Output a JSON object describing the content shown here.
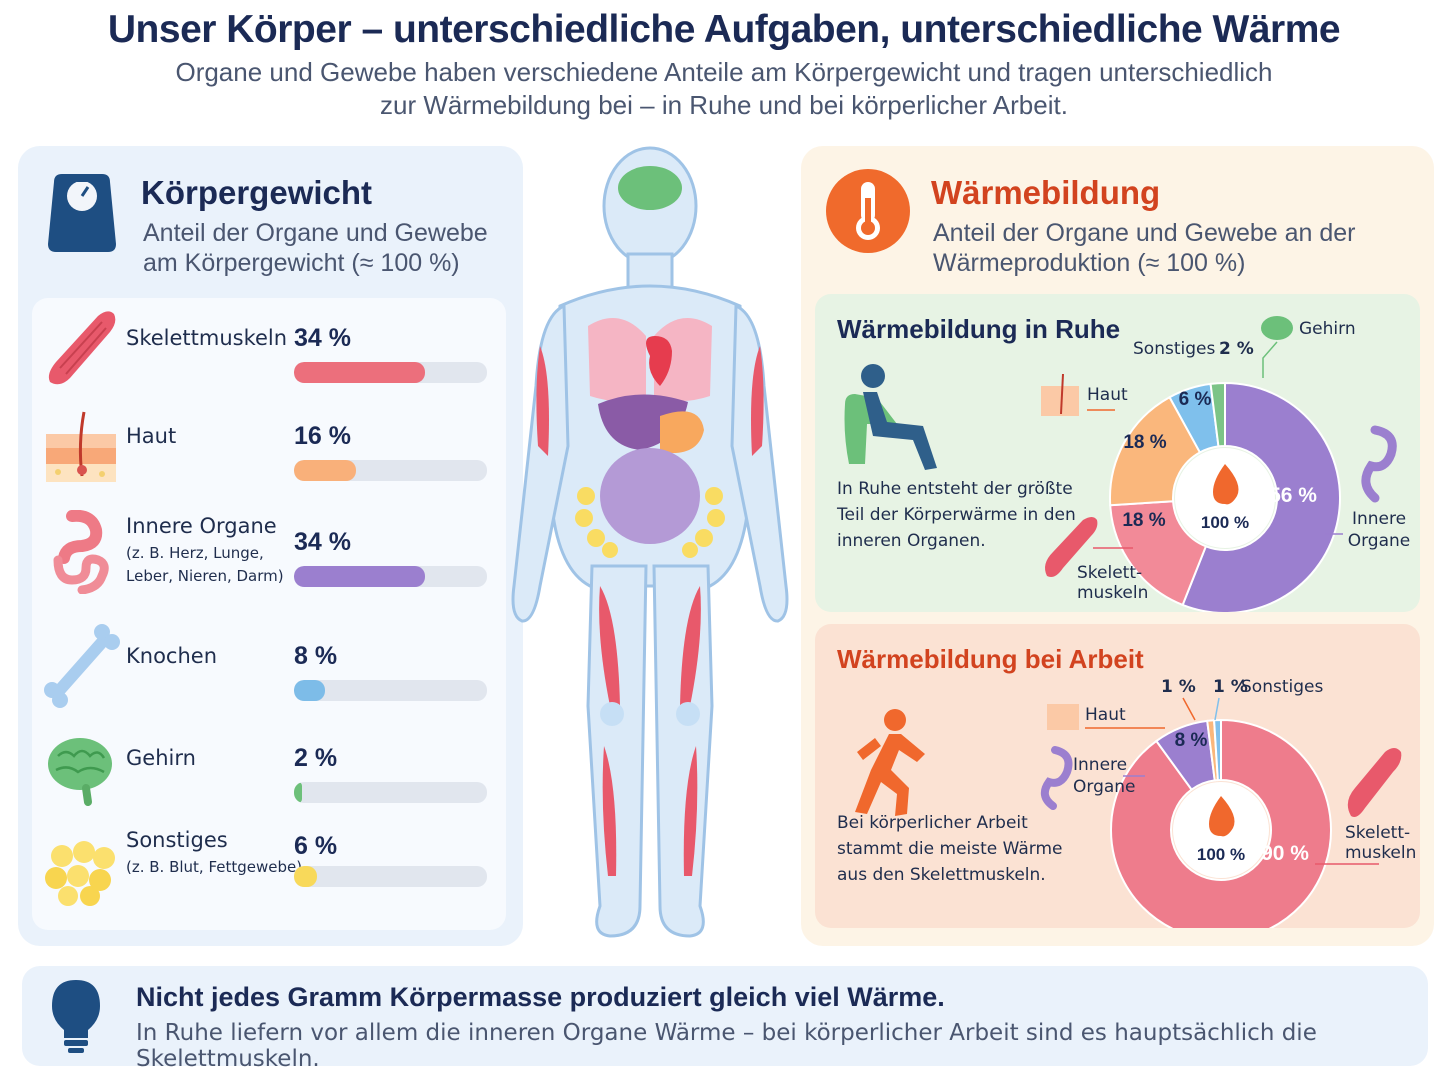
{
  "header": {
    "title": "Unser Körper – unterschiedliche Aufgaben, unterschiedliche Wärme",
    "subtitle_line1": "Organe und Gewebe haben verschiedene Anteile am Körpergewicht und tragen unterschiedlich",
    "subtitle_line2": "zur Wärmebildung bei – in Ruhe und bei körperlicher Arbeit."
  },
  "weight": {
    "title": "Körpergewicht",
    "subtitle": "Anteil der Organe und Gewebe am Körpergewicht (≈ 100 %)",
    "items": [
      {
        "label": "Skelettmuskeln",
        "sublabel": "",
        "pct_label": "34 %",
        "icon": "muscle-icon",
        "color": "#ec6f7c"
      },
      {
        "label": "Haut",
        "sublabel": "",
        "pct_label": "16 %",
        "icon": "skin-icon",
        "color": "#f9b07a"
      },
      {
        "label": "Innere Organe",
        "sublabel": "(z. B. Herz, Lunge, Leber, Nieren, Darm)",
        "pct_label": "34 %",
        "icon": "intestine-icon",
        "color": "#9b7fcf"
      },
      {
        "label": "Knochen",
        "sublabel": "",
        "pct_label": "8 %",
        "icon": "bone-icon",
        "color": "#7dbce8"
      },
      {
        "label": "Gehirn",
        "sublabel": "",
        "pct_label": "2 %",
        "icon": "brain-icon",
        "color": "#6dc07a"
      },
      {
        "label": "Sonstiges",
        "sublabel": "(z. B. Blut, Fettgewebe)",
        "pct_label": "6 %",
        "icon": "fat-icon",
        "color": "#f8d95a"
      }
    ]
  },
  "heat": {
    "title": "Wärmebildung",
    "subtitle": "Anteil der Organe und Gewebe an der Wärmeproduktion (≈ 100 %)",
    "rest": {
      "title": "Wärmebildung in Ruhe",
      "text": "In Ruhe entsteht der größte Teil der Körperwärme in den inneren Organen.",
      "center": "100 %",
      "labels": {
        "gehirn": "Gehirn",
        "sonstiges": "Sonstiges",
        "haut": "Haut",
        "innere": "Innere Organe",
        "skelett": "Skelett-muskeln"
      }
    },
    "work": {
      "title": "Wärmebildung bei Arbeit",
      "text": "Bei körperlicher Arbeit stammt die meiste Wärme aus den Skelettmuskeln.",
      "center": "100 %",
      "labels": {
        "haut": "Haut",
        "innere": "Innere Organe",
        "sonstiges": "Sonstiges",
        "skelett": "Skelett-muskeln"
      }
    }
  },
  "footer": {
    "title": "Nicht jedes Gramm Körpermasse produziert gleich viel Wärme.",
    "text": "In Ruhe liefern vor allem die inneren Organe Wärme – bei körperlicher Arbeit sind es hauptsächlich die Skelettmuskeln."
  },
  "chart_data": [
    {
      "type": "bar",
      "title": "Körpergewicht",
      "categories": [
        "Skelettmuskeln",
        "Haut",
        "Innere Organe",
        "Knochen",
        "Gehirn",
        "Sonstiges"
      ],
      "values": [
        34,
        16,
        34,
        8,
        2,
        6
      ],
      "ylim": [
        0,
        100
      ]
    },
    {
      "type": "pie",
      "title": "Wärmebildung in Ruhe",
      "categories": [
        "Innere Organe",
        "Skelettmuskeln",
        "Haut",
        "Sonstiges",
        "Gehirn"
      ],
      "values": [
        56,
        18,
        18,
        6,
        2
      ],
      "value_labels": [
        "56 %",
        "18 %",
        "18 %",
        "6 %",
        "2 %"
      ],
      "colors": [
        "#9b7fcf",
        "#f28a98",
        "#fab77c",
        "#7fc0ec",
        "#7cc487"
      ]
    },
    {
      "type": "pie",
      "title": "Wärmebildung bei Arbeit",
      "categories": [
        "Skelettmuskeln",
        "Innere Organe",
        "Haut",
        "Sonstiges",
        "Gehirn"
      ],
      "values": [
        90,
        8,
        1,
        1,
        0
      ],
      "value_labels": [
        "90 %",
        "8 %",
        "1 %",
        "1 %",
        ""
      ],
      "colors": [
        "#ee7c8c",
        "#9b7fcf",
        "#fab77c",
        "#7fc0ec",
        "#7cc487"
      ]
    }
  ]
}
